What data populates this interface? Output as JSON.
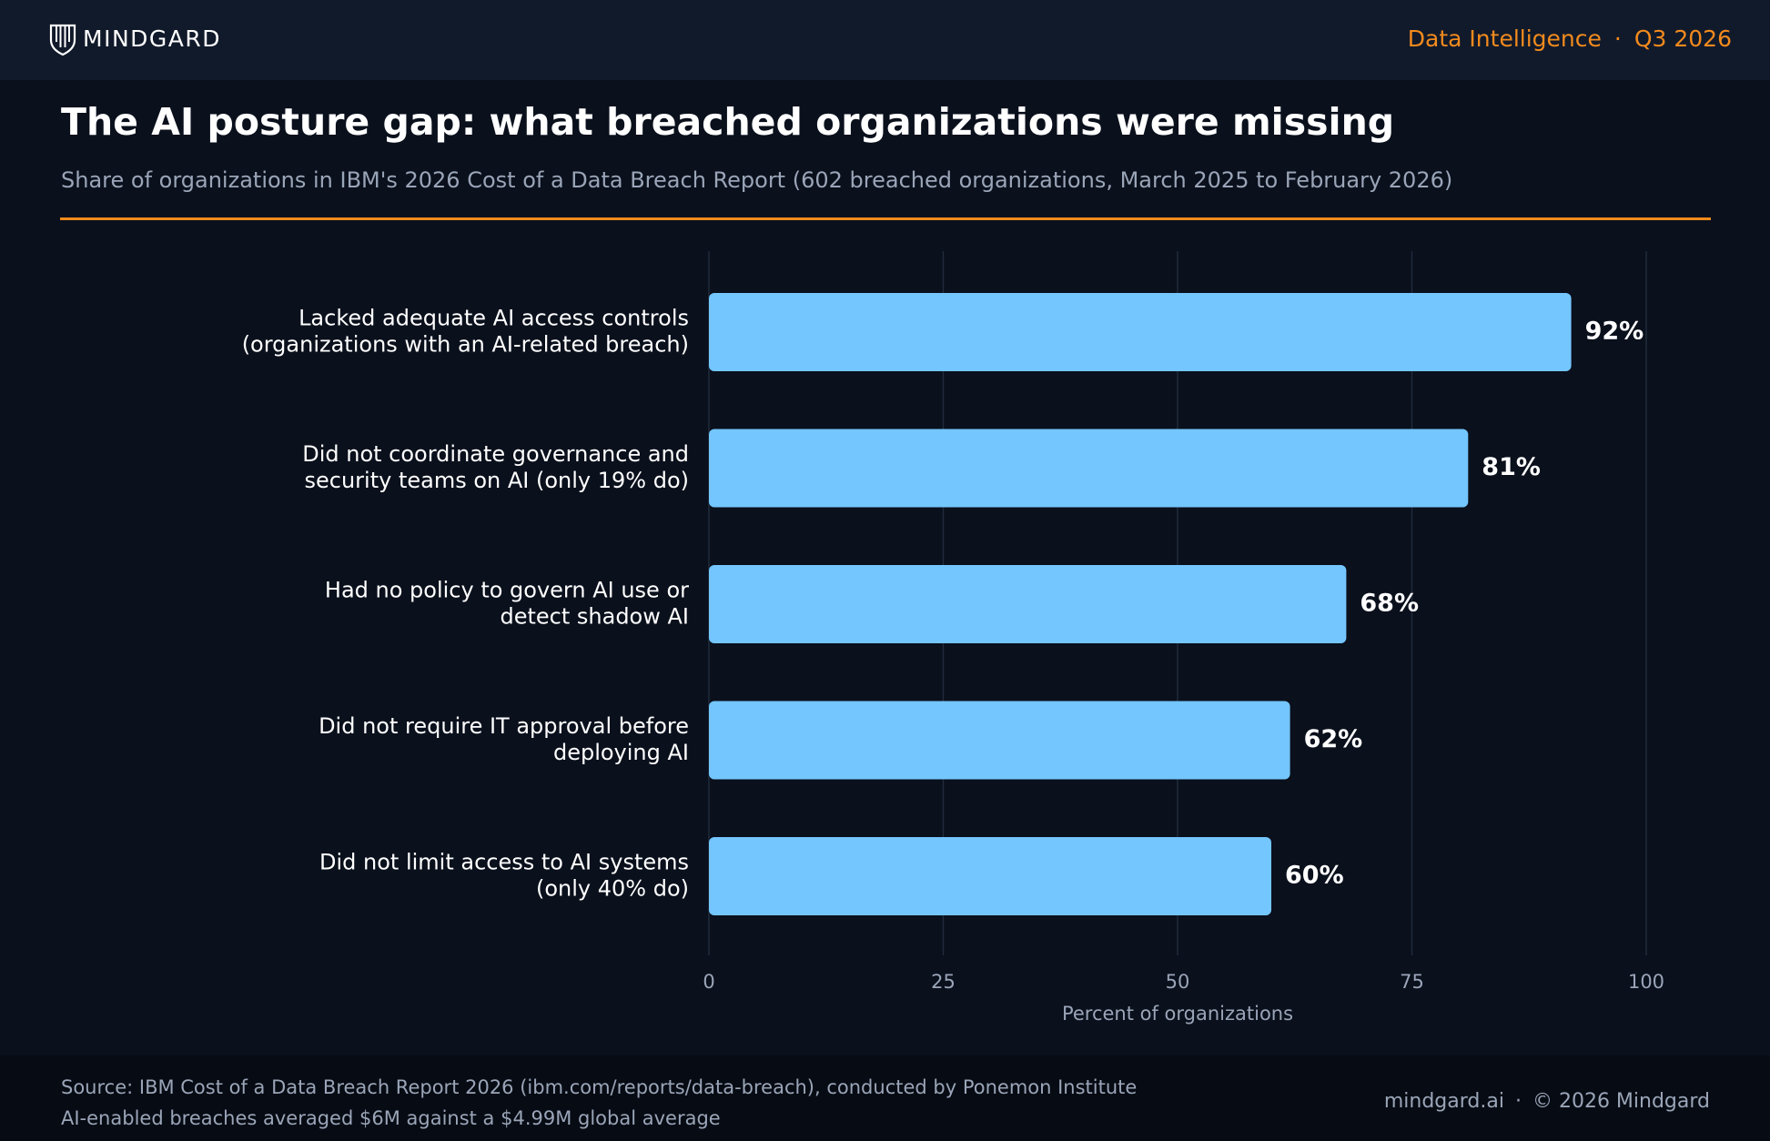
{
  "header": {
    "brand": "MINDGARD",
    "section": "Data Intelligence",
    "separator": "·",
    "period": "Q3 2026"
  },
  "chart_data": {
    "type": "bar",
    "orientation": "horizontal",
    "title": "The AI posture gap: what breached organizations were missing",
    "subtitle": "Share of organizations in IBM's 2026 Cost of a Data Breach Report (602 breached organizations, March 2025 to February 2026)",
    "categories": [
      [
        "Lacked adequate AI access controls",
        "(organizations with an AI-related breach)"
      ],
      [
        "Did not coordinate governance and",
        "security teams on AI (only 19% do)"
      ],
      [
        "Had no policy to govern AI use or",
        "detect shadow AI"
      ],
      [
        "Did not require IT approval before",
        "deploying AI"
      ],
      [
        "Did not limit access to AI systems",
        "(only 40% do)"
      ]
    ],
    "values": [
      92,
      81,
      68,
      62,
      60
    ],
    "value_labels": [
      "92%",
      "81%",
      "68%",
      "62%",
      "60%"
    ],
    "xlim": [
      0,
      100
    ],
    "xticks": [
      "0",
      "25",
      "50",
      "75",
      "100"
    ],
    "xlabel": "Percent of organizations",
    "ylabel": "",
    "grid": "vertical",
    "bar_color": "#74c6ff"
  },
  "footer": {
    "source": "Source: IBM Cost of a Data Breach Report 2026 (ibm.com/reports/data-breach), conducted by Ponemon Institute",
    "note": "AI-enabled breaches averaged $6M against a $4.99M global average",
    "site": "mindgard.ai",
    "separator": "·",
    "copyright": "© 2026 Mindgard"
  },
  "colors": {
    "accent": "#f28a1d",
    "bar": "#74c6ff",
    "background": "#0a101c",
    "header_bg": "#111a2b"
  }
}
